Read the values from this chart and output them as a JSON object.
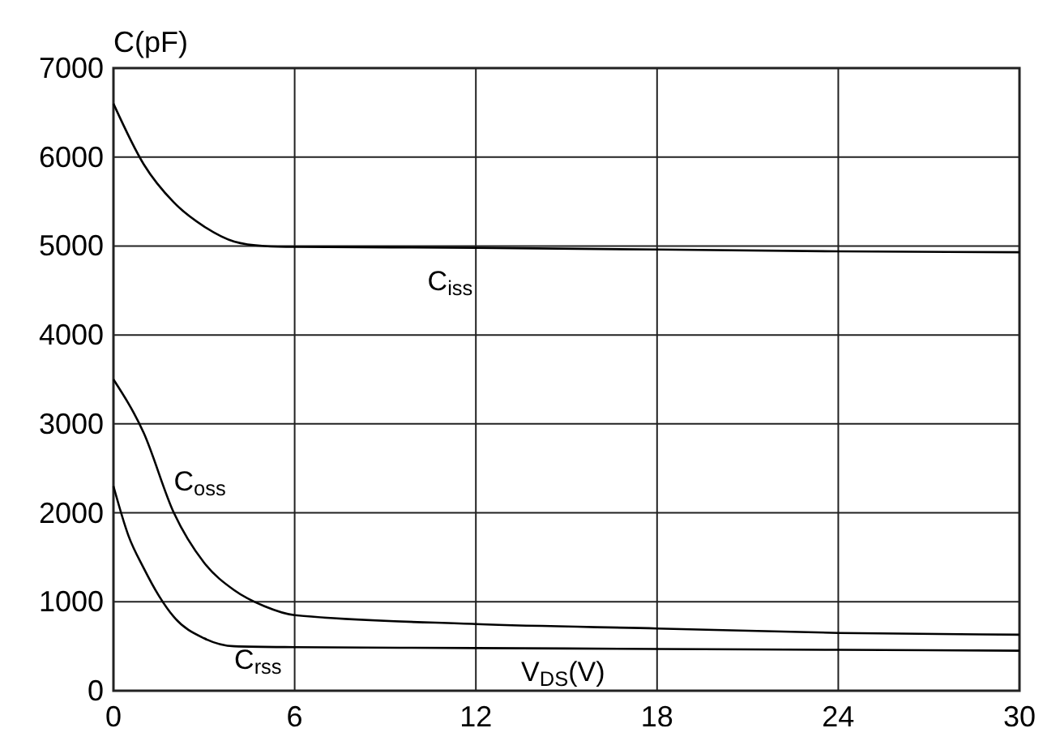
{
  "chart_data": {
    "type": "line",
    "xlabel": "V$_{DS}$(V)",
    "ylabel": "C(pF)",
    "xlim": [
      0,
      30
    ],
    "xticks": [
      0,
      6,
      12,
      18,
      24,
      30
    ],
    "ylim": [
      0,
      7000
    ],
    "yticks": [
      0,
      1000,
      2000,
      3000,
      4000,
      5000,
      6000,
      7000
    ],
    "grid": true,
    "marker": "none",
    "line_style": "solid",
    "series": [
      {
        "name": "C$_{iss}$",
        "color": "#000000",
        "x": [
          0,
          1,
          2,
          3,
          4,
          5,
          6,
          12,
          18,
          24,
          30
        ],
        "values": [
          6600,
          5920,
          5490,
          5220,
          5050,
          5000,
          4990,
          4980,
          4960,
          4940,
          4930
        ]
      },
      {
        "name": "C$_{oss}$",
        "color": "#000000",
        "x": [
          0,
          1,
          2,
          3,
          4,
          5,
          6,
          12,
          18,
          24,
          30
        ],
        "values": [
          3500,
          2900,
          2000,
          1440,
          1130,
          950,
          850,
          750,
          700,
          650,
          630
        ]
      },
      {
        "name": "C$_{rss}$",
        "color": "#000000",
        "x": [
          0,
          0.5,
          1,
          1.5,
          2,
          3,
          4,
          6,
          12,
          18,
          24,
          30
        ],
        "values": [
          2300,
          1740,
          1380,
          1070,
          830,
          590,
          500,
          490,
          480,
          470,
          460,
          450
        ]
      }
    ]
  }
}
